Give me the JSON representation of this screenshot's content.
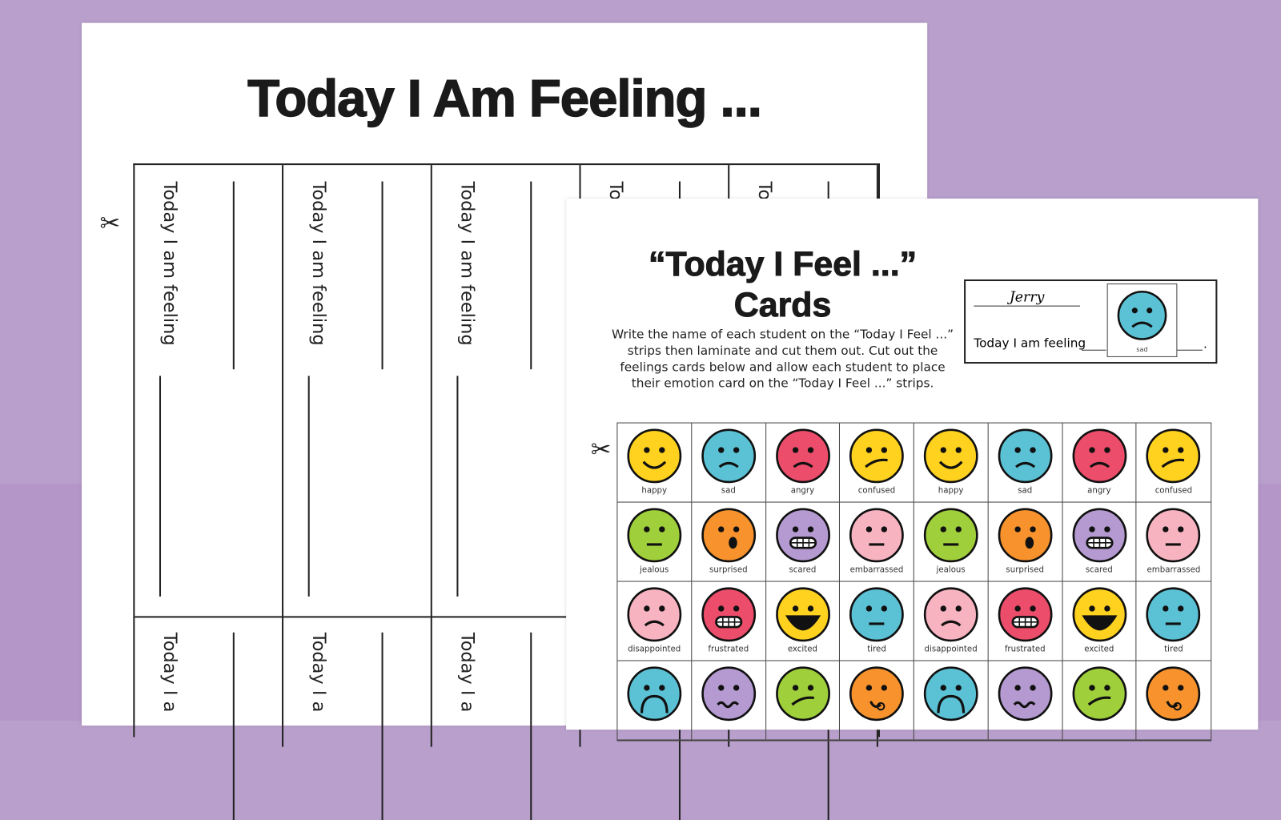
{
  "sheet1": {
    "title": "Today I Am Feeling ...",
    "strip_text": "Today I am feeling",
    "strip_text_partial": "To",
    "strip_text_bottom": "Today I a"
  },
  "sheet2": {
    "title_line1": "“Today I Feel ...”",
    "title_line2": "Cards",
    "description": "Write the name of each student on the “Today I Feel ...” strips then laminate and cut them out. Cut out the feelings cards below and allow each student to place their emotion card on the “Today I Feel ...” strips.",
    "sample": {
      "name": "Jerry",
      "text": "Today I am feeling",
      "period": ".",
      "card_label": "sad",
      "card_color": "#5bc2d6"
    },
    "cards": [
      {
        "label": "happy",
        "color": "#ffd21f",
        "mouth": "smile"
      },
      {
        "label": "sad",
        "color": "#5bc2d6",
        "mouth": "frown"
      },
      {
        "label": "angry",
        "color": "#ec4d6a",
        "mouth": "frown"
      },
      {
        "label": "confused",
        "color": "#ffd21f",
        "mouth": "side"
      },
      {
        "label": "jealous",
        "color": "#9fcf3a",
        "mouth": "flat"
      },
      {
        "label": "surprised",
        "color": "#f7922d",
        "mouth": "o"
      },
      {
        "label": "scared",
        "color": "#b49ad0",
        "mouth": "teeth"
      },
      {
        "label": "embarrassed",
        "color": "#f7b3c0",
        "mouth": "flat"
      },
      {
        "label": "disappointed",
        "color": "#f7b3c0",
        "mouth": "frown"
      },
      {
        "label": "frustrated",
        "color": "#ec4d6a",
        "mouth": "teeth"
      },
      {
        "label": "excited",
        "color": "#ffd21f",
        "mouth": "open"
      },
      {
        "label": "tired",
        "color": "#5bc2d6",
        "mouth": "flat"
      },
      {
        "label": "",
        "color": "#5bc2d6",
        "mouth": "bigfrown"
      },
      {
        "label": "",
        "color": "#b49ad0",
        "mouth": "wavy"
      },
      {
        "label": "",
        "color": "#9fcf3a",
        "mouth": "side"
      },
      {
        "label": "",
        "color": "#f7922d",
        "mouth": "tongue"
      }
    ]
  }
}
